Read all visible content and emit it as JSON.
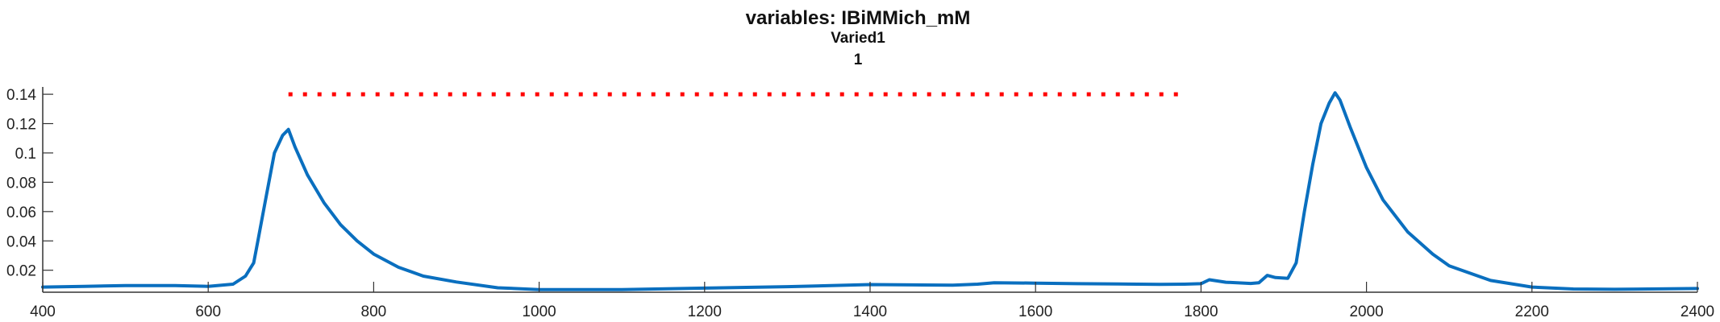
{
  "chart_data": {
    "type": "line",
    "title": "variables: IBiMMich_mM",
    "subtitle": "Varied1",
    "subtitle2": "1",
    "xlabel": "",
    "ylabel": "",
    "xlim": [
      400,
      2400
    ],
    "ylim": [
      0.005,
      0.145
    ],
    "xticks": [
      400,
      600,
      800,
      1000,
      1200,
      1400,
      1600,
      1800,
      2000,
      2200,
      2400
    ],
    "yticks": [
      0.02,
      0.04,
      0.06,
      0.08,
      0.1,
      0.12,
      0.14
    ],
    "ytick_labels": [
      "0.02",
      "0.04",
      "0.06",
      "0.08",
      "0.1",
      "0.12",
      "0.14"
    ],
    "grid": false,
    "colors": {
      "line": "#0a6fbf",
      "dots": "#ff0000",
      "axis": "#333333"
    },
    "series": [
      {
        "style": "solid",
        "x": [
          400,
          450,
          500,
          560,
          600,
          630,
          645,
          655,
          660,
          665,
          670,
          680,
          690,
          697,
          705,
          720,
          740,
          760,
          780,
          800,
          830,
          860,
          900,
          950,
          1000,
          1100,
          1200,
          1300,
          1400,
          1450,
          1500,
          1530,
          1550,
          1600,
          1650,
          1700,
          1750,
          1780,
          1800,
          1810,
          1830,
          1860,
          1870,
          1880,
          1890,
          1905,
          1915,
          1925,
          1935,
          1945,
          1955,
          1962,
          1968,
          1980,
          2000,
          2020,
          2050,
          2080,
          2100,
          2150,
          2200,
          2250,
          2300,
          2400
        ],
        "y": [
          0.0085,
          0.009,
          0.0095,
          0.0095,
          0.009,
          0.0105,
          0.016,
          0.025,
          0.04,
          0.055,
          0.07,
          0.1,
          0.112,
          0.116,
          0.104,
          0.085,
          0.066,
          0.051,
          0.04,
          0.031,
          0.022,
          0.016,
          0.012,
          0.008,
          0.0068,
          0.0068,
          0.0078,
          0.0088,
          0.0102,
          0.01,
          0.0098,
          0.0105,
          0.0115,
          0.0112,
          0.0108,
          0.0106,
          0.0103,
          0.0105,
          0.0108,
          0.0135,
          0.0118,
          0.011,
          0.0115,
          0.0165,
          0.015,
          0.0145,
          0.025,
          0.06,
          0.092,
          0.12,
          0.134,
          0.141,
          0.136,
          0.118,
          0.09,
          0.068,
          0.046,
          0.031,
          0.023,
          0.013,
          0.0085,
          0.0072,
          0.007,
          0.0075
        ]
      },
      {
        "style": "dotted",
        "x": [
          697,
          1780
        ],
        "y": [
          0.14,
          0.14
        ]
      }
    ]
  }
}
